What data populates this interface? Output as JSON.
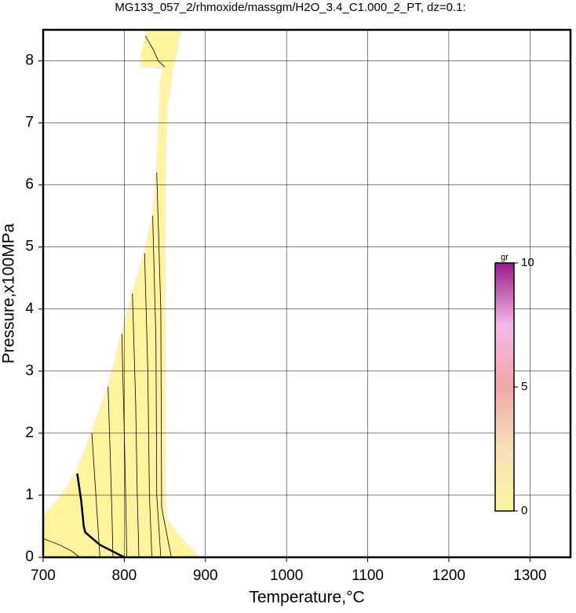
{
  "chart_data": {
    "type": "contour",
    "title": "MG133_057_2/rhmoxide/massgm/H2O_3.4_C1.000_2_PT, dz=0.1:",
    "x_label": "Temperature,°C",
    "y_label": "Pressure,x100MPa",
    "xlim": [
      700,
      1350
    ],
    "xticks": [
      700,
      800,
      900,
      1000,
      1100,
      1200,
      1300
    ],
    "ylim": [
      0,
      8.5
    ],
    "yticks": [
      0,
      1,
      2,
      3,
      4,
      5,
      6,
      7,
      8
    ],
    "grid": true,
    "region": {
      "color": "#fdf49c",
      "x": [
        700,
        700,
        720,
        740,
        760,
        780,
        797,
        810,
        825,
        835,
        840,
        843,
        845,
        848,
        822,
        820,
        828,
        870,
        860,
        852,
        850,
        850,
        852,
        870,
        893
      ],
      "y": [
        0,
        0.65,
        0.95,
        1.35,
        2.0,
        2.75,
        3.6,
        4.25,
        4.9,
        5.5,
        6.2,
        7.0,
        7.6,
        7.9,
        7.9,
        8.0,
        8.5,
        8.5,
        7.9,
        7.2,
        6.0,
        1.0,
        0.6,
        0.3,
        0
      ]
    },
    "contours": [
      {
        "line_width": 2.5,
        "x": [
          742,
          747,
          750,
          752,
          770,
          800
        ],
        "y": [
          1.35,
          0.9,
          0.5,
          0.4,
          0.2,
          0
        ]
      },
      {
        "line_width": 0.8,
        "x": [
          760,
          765,
          768,
          770
        ],
        "y": [
          2.0,
          1.0,
          0.4,
          0
        ]
      },
      {
        "line_width": 0.8,
        "x": [
          780,
          783,
          785,
          786
        ],
        "y": [
          2.75,
          1.5,
          0.6,
          0
        ]
      },
      {
        "line_width": 0.8,
        "x": [
          797,
          800,
          802,
          803
        ],
        "y": [
          3.6,
          2.0,
          0.8,
          0
        ]
      },
      {
        "line_width": 0.8,
        "x": [
          810,
          814,
          816,
          818
        ],
        "y": [
          4.25,
          2.5,
          1.0,
          0
        ]
      },
      {
        "line_width": 0.8,
        "x": [
          825,
          829,
          831,
          834
        ],
        "y": [
          4.9,
          3.0,
          1.0,
          0
        ]
      },
      {
        "line_width": 0.8,
        "x": [
          835,
          839,
          840,
          845
        ],
        "y": [
          5.5,
          3.5,
          1.0,
          0
        ]
      },
      {
        "line_width": 0.8,
        "x": [
          840,
          845,
          846,
          858
        ],
        "y": [
          6.2,
          4.0,
          0.8,
          0
        ]
      },
      {
        "line_width": 0.8,
        "x": [
          700,
          720,
          735,
          745
        ],
        "y": [
          0.3,
          0.2,
          0.1,
          0
        ]
      },
      {
        "line_width": 0.8,
        "x": [
          826,
          835,
          842,
          850
        ],
        "y": [
          8.4,
          8.2,
          8.0,
          7.9
        ]
      }
    ],
    "colorbar": {
      "label": "gr",
      "lim": [
        0,
        10
      ],
      "ticks": [
        0,
        5,
        10
      ],
      "colors": [
        "#f8f6a0",
        "#f7e0b8",
        "#f0a8a8",
        "#f4b8e8",
        "#9a1a88"
      ]
    }
  }
}
